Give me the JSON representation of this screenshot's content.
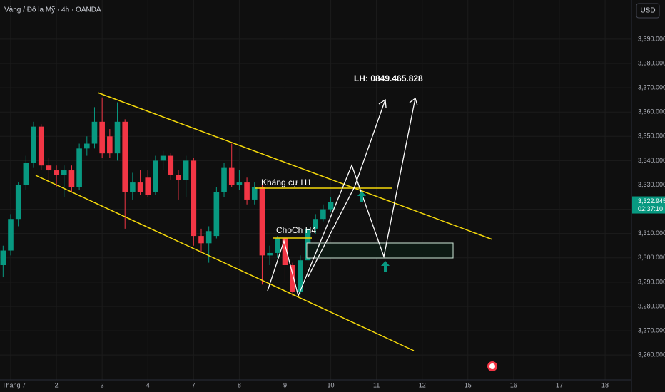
{
  "chart_data": {
    "type": "candlestick",
    "title": "Vàng / Đô la Mỹ · 4h · OANDA",
    "currency": "USD",
    "up_color": "#089981",
    "down_color": "#f23645",
    "open": [
      3297,
      3303,
      3316,
      3330,
      3339,
      3354,
      3338,
      3336,
      3334,
      3336,
      3329,
      3345,
      3347,
      3356,
      3350,
      3343,
      3356,
      3327,
      3331,
      3333,
      3327,
      3340,
      3342,
      3334,
      3332,
      3340,
      3309,
      3306,
      3309,
      3327,
      3337,
      3330,
      3331,
      3324,
      3329,
      3301,
      3302,
      3308,
      3297,
      3286,
      3299,
      3312,
      3316,
      3320
    ],
    "high": [
      3305,
      3318,
      3331,
      3342,
      3356,
      3355,
      3341,
      3338,
      3338,
      3338,
      3347,
      3350,
      3362,
      3366,
      3353,
      3364,
      3357,
      3335,
      3336,
      3336,
      3342,
      3344,
      3343,
      3336,
      3342,
      3341,
      3312,
      3313,
      3329,
      3339,
      3347,
      3336,
      3333,
      3331,
      3330,
      3305,
      3309,
      3309,
      3298,
      3301,
      3314,
      3318,
      3322,
      3325
    ],
    "low": [
      3292,
      3301,
      3313,
      3328,
      3337,
      3336,
      3331,
      3329,
      3325,
      3327,
      3328,
      3342,
      3345,
      3341,
      3341,
      3340,
      3312,
      3324,
      3326,
      3325,
      3326,
      3336,
      3332,
      3324,
      3325,
      3305,
      3302,
      3298,
      3308,
      3325,
      3329,
      3328,
      3322,
      3322,
      3289,
      3297,
      3300,
      3290,
      3284,
      3285,
      3296,
      3310,
      3315,
      3319
    ],
    "close": [
      3303,
      3316,
      3330,
      3339,
      3354,
      3338,
      3336,
      3334,
      3336,
      3329,
      3345,
      3347,
      3356,
      3343,
      3343,
      3356,
      3327,
      3331,
      3327,
      3326,
      3340,
      3342,
      3334,
      3332,
      3340,
      3309,
      3306,
      3311,
      3327,
      3337,
      3330,
      3331,
      3324,
      3329,
      3301,
      3302,
      3308,
      3297,
      3286,
      3299,
      3312,
      3316,
      3320,
      3322.945
    ],
    "last_price": {
      "value": 3322.945,
      "label": "3,322.945"
    },
    "countdown": "02:37:10",
    "x_labels": [
      "Tháng 7",
      "2",
      "3",
      "4",
      "7",
      "8",
      "9",
      "10",
      "11",
      "12",
      "15",
      "16",
      "17",
      "18"
    ],
    "ylim": [
      3244.8,
      3406.1
    ],
    "yticks": [
      {
        "value": 3260,
        "label": "3,260.000"
      },
      {
        "value": 3270,
        "label": "3,270.000"
      },
      {
        "value": 3280,
        "label": "3,280.000"
      },
      {
        "value": 3290,
        "label": "3,290.000"
      },
      {
        "value": 3300,
        "label": "3,300.000"
      },
      {
        "value": 3310,
        "label": "3,310.000"
      },
      {
        "value": 3320,
        "label": "3,320.000"
      },
      {
        "value": 3330,
        "label": "3,330.000"
      },
      {
        "value": 3340,
        "label": "3,340.000"
      },
      {
        "value": 3350,
        "label": "3,350.000"
      },
      {
        "value": 3360,
        "label": "3,360.000"
      },
      {
        "value": 3370,
        "label": "3,370.000"
      },
      {
        "value": 3380,
        "label": "3,380.000"
      },
      {
        "value": 3390,
        "label": "3,390.000"
      }
    ],
    "grid": true,
    "annotations": [
      "LH: 0849.465.828",
      "Kháng cự H1",
      "ChoCh H4"
    ]
  }
}
